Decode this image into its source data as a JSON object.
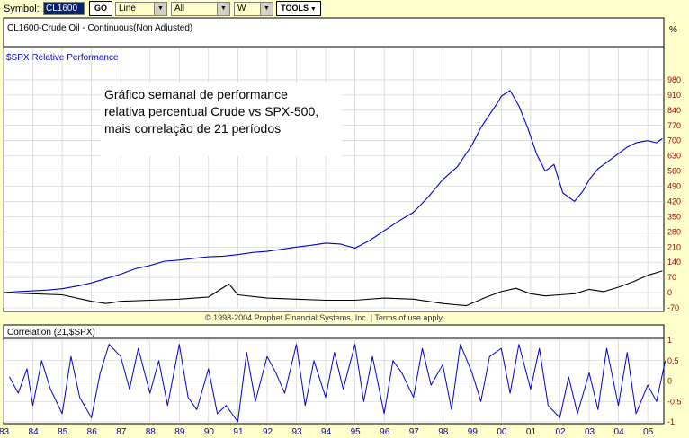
{
  "toolbar": {
    "symbol_label": "Symbol:",
    "symbol_value": "CL1600",
    "go_label": "GO",
    "chart_type": "Line",
    "range": "All",
    "period": "W",
    "tools_label": "TOOLS"
  },
  "main_panel": {
    "title": "CL1600-Crude Oil - Continuous(Non Adjusted)",
    "percent_label": "%",
    "indicator_label": "$SPX Relative Performance",
    "annotation_lines": [
      "Gráfico semanal de performance",
      "relativa percentual Crude vs SPX-500,",
      "mais correlação de 21 períodos"
    ],
    "footer": "© 1998-2004 Prophet Financial Systems, Inc. | Terms of use apply."
  },
  "lower_panel": {
    "title": "Correlation (21,$SPX)"
  },
  "colors": {
    "background": "#FFFFCC",
    "panel": "#FFFFFF",
    "relative_line": "#0000CC",
    "crude_line": "#000000",
    "grid": "#C8C8C8",
    "axis_text_blue": "#0000AA",
    "axis_text_red": "#990000"
  },
  "chart_data": [
    {
      "type": "line",
      "title": "CL1600-Crude Oil - Continuous(Non Adjusted)",
      "ylabel": "%",
      "ylim": [
        -70,
        1050
      ],
      "y_ticks": [
        -70,
        0,
        70,
        140,
        210,
        280,
        350,
        420,
        490,
        560,
        630,
        700,
        770,
        840,
        910,
        980
      ],
      "x_ticks": [
        "83",
        "84",
        "85",
        "86",
        "87",
        "88",
        "89",
        "90",
        "91",
        "92",
        "93",
        "94",
        "95",
        "96",
        "97",
        "98",
        "99",
        "00",
        "01",
        "02",
        "03",
        "04",
        "05"
      ],
      "grid": true,
      "series": [
        {
          "name": "$SPX Relative Performance",
          "x": [
            1983.0,
            1983.5,
            1984.0,
            1984.5,
            1985.0,
            1985.5,
            1986.0,
            1986.5,
            1987.0,
            1987.5,
            1988.0,
            1988.5,
            1989.0,
            1989.5,
            1990.0,
            1990.5,
            1991.0,
            1991.5,
            1992.0,
            1992.5,
            1993.0,
            1993.5,
            1994.0,
            1994.5,
            1995.0,
            1995.5,
            1996.0,
            1996.5,
            1997.0,
            1997.5,
            1998.0,
            1998.5,
            1999.0,
            1999.3,
            1999.6,
            1999.9,
            2000.0,
            2000.3,
            2000.6,
            2000.9,
            2001.2,
            2001.5,
            2001.8,
            2002.1,
            2002.5,
            2002.8,
            2003.0,
            2003.3,
            2003.6,
            2004.0,
            2004.3,
            2004.6,
            2005.0,
            2005.3,
            2005.5
          ],
          "values": [
            0,
            5,
            8,
            12,
            18,
            30,
            45,
            65,
            85,
            110,
            125,
            145,
            150,
            158,
            165,
            168,
            175,
            185,
            190,
            200,
            210,
            218,
            228,
            224,
            205,
            240,
            285,
            330,
            370,
            440,
            520,
            580,
            680,
            760,
            820,
            880,
            905,
            930,
            860,
            760,
            640,
            560,
            590,
            460,
            420,
            470,
            520,
            570,
            600,
            640,
            670,
            690,
            700,
            690,
            710
          ]
        },
        {
          "name": "Crude Oil",
          "x": [
            1983.0,
            1984.0,
            1985.0,
            1986.0,
            1986.5,
            1987.0,
            1988.0,
            1989.0,
            1990.0,
            1990.7,
            1991.0,
            1992.0,
            1993.0,
            1994.0,
            1995.0,
            1996.0,
            1997.0,
            1998.0,
            1998.8,
            1999.5,
            2000.0,
            2000.5,
            2001.0,
            2001.5,
            2002.0,
            2002.5,
            2003.0,
            2003.5,
            2004.0,
            2004.5,
            2005.0,
            2005.5
          ],
          "values": [
            0,
            -5,
            -10,
            -40,
            -50,
            -40,
            -35,
            -30,
            -20,
            40,
            -10,
            -25,
            -30,
            -35,
            -35,
            -25,
            -30,
            -50,
            -60,
            -20,
            5,
            20,
            -5,
            -15,
            -10,
            -5,
            15,
            5,
            25,
            50,
            80,
            100
          ]
        }
      ]
    },
    {
      "type": "line",
      "title": "Correlation (21,$SPX)",
      "ylim": [
        -1,
        1
      ],
      "y_ticks": [
        -1,
        -0.5,
        0,
        0.5,
        1
      ],
      "y_tick_labels": [
        "-1",
        "-0,5",
        "0",
        "0,5",
        "1"
      ],
      "grid": true,
      "series": [
        {
          "name": "Correlation (21,$SPX)",
          "x": [
            1983.2,
            1983.5,
            1983.8,
            1984.0,
            1984.3,
            1984.6,
            1985.0,
            1985.3,
            1985.6,
            1986.0,
            1986.3,
            1986.6,
            1987.0,
            1987.3,
            1987.6,
            1988.0,
            1988.3,
            1988.6,
            1989.0,
            1989.3,
            1989.6,
            1990.0,
            1990.3,
            1990.6,
            1991.0,
            1991.3,
            1991.6,
            1992.0,
            1992.3,
            1992.6,
            1993.0,
            1993.3,
            1993.6,
            1994.0,
            1994.3,
            1994.6,
            1995.0,
            1995.3,
            1995.6,
            1996.0,
            1996.3,
            1996.6,
            1997.0,
            1997.3,
            1997.6,
            1998.0,
            1998.3,
            1998.6,
            1999.0,
            1999.3,
            1999.6,
            2000.0,
            2000.3,
            2000.6,
            2001.0,
            2001.3,
            2001.6,
            2002.0,
            2002.3,
            2002.6,
            2003.0,
            2003.3,
            2003.6,
            2004.0,
            2004.3,
            2004.6,
            2005.0,
            2005.3,
            2005.6
          ],
          "values": [
            0.1,
            -0.3,
            0.3,
            -0.6,
            0.5,
            -0.2,
            -0.8,
            0.6,
            -0.4,
            -0.9,
            0.2,
            0.9,
            0.6,
            -0.2,
            0.8,
            -0.3,
            0.5,
            -0.6,
            0.9,
            -0.4,
            -0.7,
            0.3,
            -0.8,
            -0.6,
            -1.0,
            0.7,
            -0.5,
            0.6,
            0.2,
            -0.3,
            0.9,
            -0.6,
            0.5,
            -0.4,
            0.7,
            -0.2,
            0.9,
            -0.5,
            0.6,
            -0.8,
            0.5,
            0.2,
            -0.4,
            0.8,
            -0.1,
            0.4,
            -0.7,
            0.9,
            0.2,
            -0.5,
            0.6,
            0.8,
            -0.3,
            0.9,
            -0.2,
            0.8,
            -0.6,
            -0.9,
            0.1,
            -0.8,
            0.2,
            -0.7,
            0.8,
            -0.6,
            0.7,
            -0.8,
            -0.1,
            -0.5,
            0.5
          ]
        }
      ]
    }
  ]
}
